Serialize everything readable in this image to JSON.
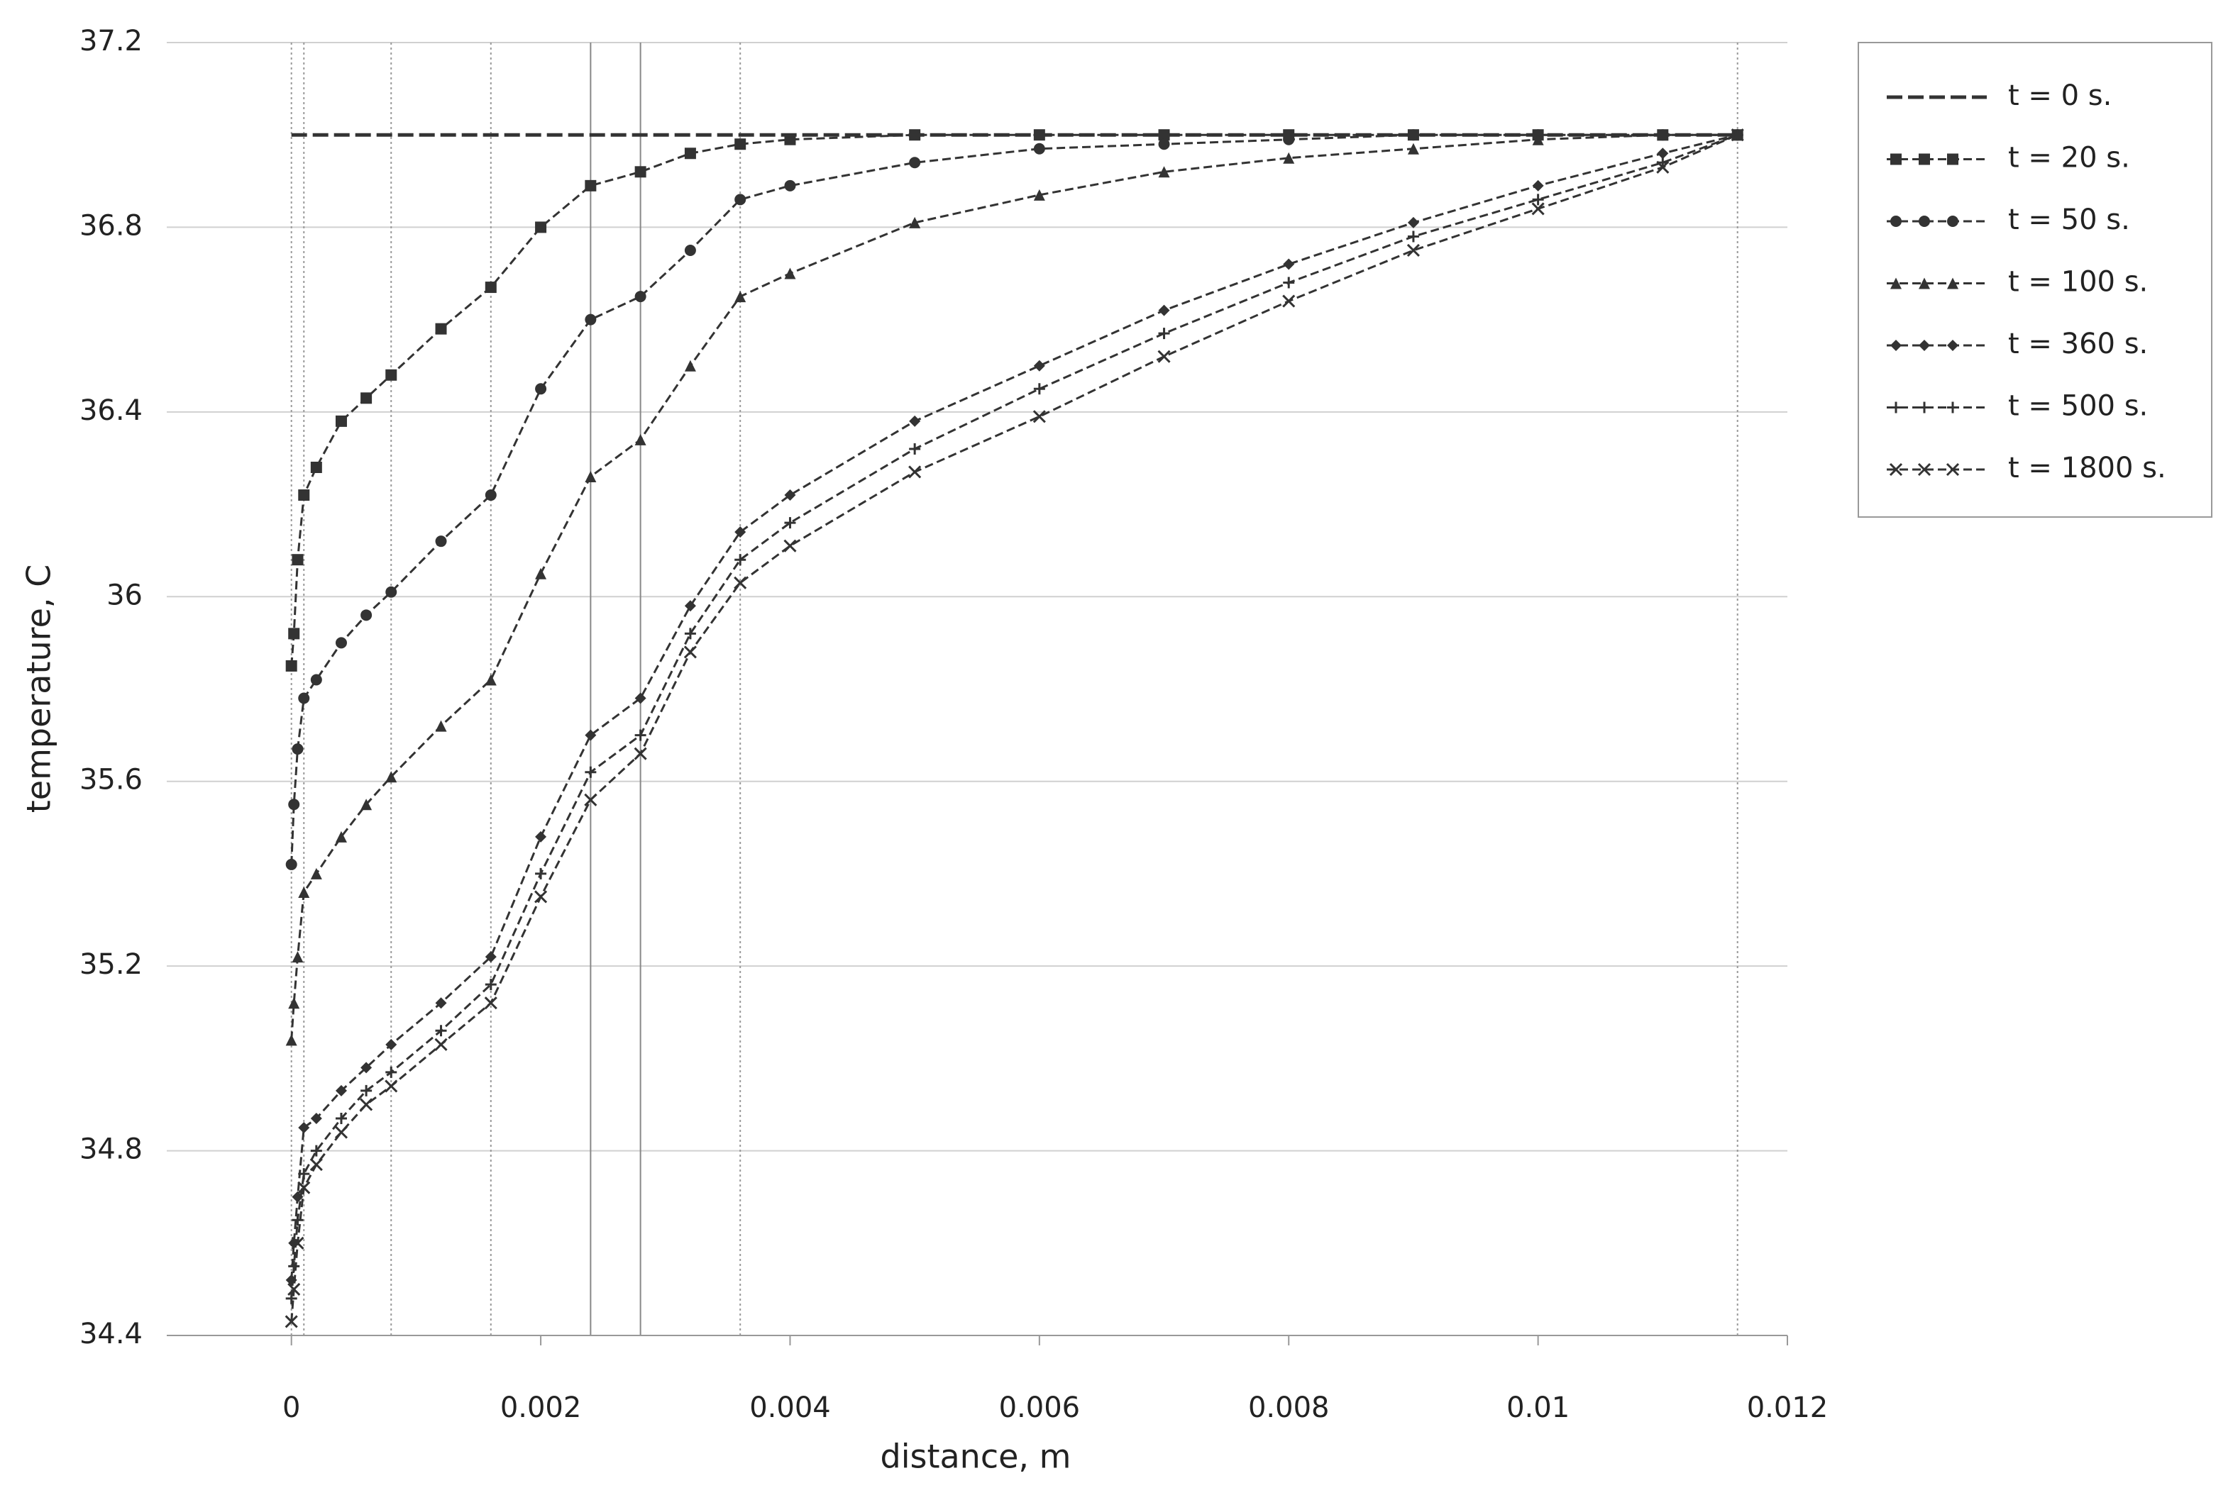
{
  "chart_data": {
    "type": "line",
    "x_label": "distance, m",
    "y_label": "temperature, C",
    "xlim": [
      -0.001,
      0.012
    ],
    "xticks": [
      0,
      0.002,
      0.004,
      0.006,
      0.008,
      0.01,
      0.012
    ],
    "ylim": [
      34.4,
      37.2
    ],
    "yticks": [
      34.4,
      34.8,
      35.2,
      35.6,
      36,
      36.4,
      36.8,
      37.2
    ],
    "grid": true,
    "vlines_dotted": [
      0,
      0.0001,
      0.0008,
      0.0016,
      0.0036,
      0.0116
    ],
    "vlines_solid": [
      0.0024,
      0.0028
    ],
    "legend": "upper right outside",
    "x": [
      0,
      2e-05,
      5e-05,
      0.0001,
      0.0002,
      0.0004,
      0.0006,
      0.0008,
      0.0012,
      0.0016,
      0.002,
      0.0024,
      0.0028,
      0.0032,
      0.0036,
      0.004,
      0.005,
      0.006,
      0.007,
      0.008,
      0.009,
      0.01,
      0.011,
      0.0116
    ],
    "series": [
      {
        "name": "t = 0 s.",
        "color": "#333333",
        "values": [
          37,
          37,
          37,
          37,
          37,
          37,
          37,
          37,
          37,
          37,
          37,
          37,
          37,
          37,
          37,
          37,
          37,
          37,
          37,
          37,
          37,
          37,
          37,
          37
        ]
      },
      {
        "name": "t = 20 s.",
        "color": "#333333",
        "marker": "square",
        "values": [
          35.85,
          35.92,
          36.08,
          36.22,
          36.28,
          36.38,
          36.43,
          36.48,
          36.58,
          36.67,
          36.8,
          36.89,
          36.92,
          36.96,
          36.98,
          36.99,
          37,
          37,
          37,
          37,
          37,
          37,
          37,
          37
        ]
      },
      {
        "name": "t = 50 s.",
        "color": "#333333",
        "marker": "circle",
        "values": [
          35.42,
          35.55,
          35.67,
          35.78,
          35.82,
          35.9,
          35.96,
          36.01,
          36.12,
          36.22,
          36.45,
          36.6,
          36.65,
          36.75,
          36.86,
          36.89,
          36.94,
          36.97,
          36.98,
          36.99,
          37,
          37,
          37,
          37
        ]
      },
      {
        "name": "t = 100 s.",
        "color": "#333333",
        "marker": "triangle",
        "values": [
          35.04,
          35.12,
          35.22,
          35.36,
          35.4,
          35.48,
          35.55,
          35.61,
          35.72,
          35.82,
          36.05,
          36.26,
          36.34,
          36.5,
          36.65,
          36.7,
          36.81,
          36.87,
          36.92,
          36.95,
          36.97,
          36.99,
          37,
          37
        ]
      },
      {
        "name": "t = 360 s.",
        "color": "#333333",
        "marker": "diamond",
        "values": [
          34.52,
          34.6,
          34.7,
          34.85,
          34.87,
          34.93,
          34.98,
          35.03,
          35.12,
          35.22,
          35.48,
          35.7,
          35.78,
          35.98,
          36.14,
          36.22,
          36.38,
          36.5,
          36.62,
          36.72,
          36.81,
          36.89,
          36.96,
          37
        ]
      },
      {
        "name": "t = 500 s.",
        "color": "#333333",
        "marker": "plus",
        "values": [
          34.48,
          34.55,
          34.65,
          34.75,
          34.8,
          34.87,
          34.93,
          34.97,
          35.06,
          35.16,
          35.4,
          35.62,
          35.7,
          35.92,
          36.08,
          36.16,
          36.32,
          36.45,
          36.57,
          36.68,
          36.78,
          36.86,
          36.94,
          37
        ]
      },
      {
        "name": "t = 1800 s.",
        "color": "#333333",
        "marker": "cross",
        "values": [
          34.43,
          34.5,
          34.6,
          34.72,
          34.77,
          34.84,
          34.9,
          34.94,
          35.03,
          35.12,
          35.35,
          35.56,
          35.66,
          35.88,
          36.03,
          36.11,
          36.27,
          36.39,
          36.52,
          36.64,
          36.75,
          36.84,
          36.93,
          37
        ]
      }
    ]
  }
}
